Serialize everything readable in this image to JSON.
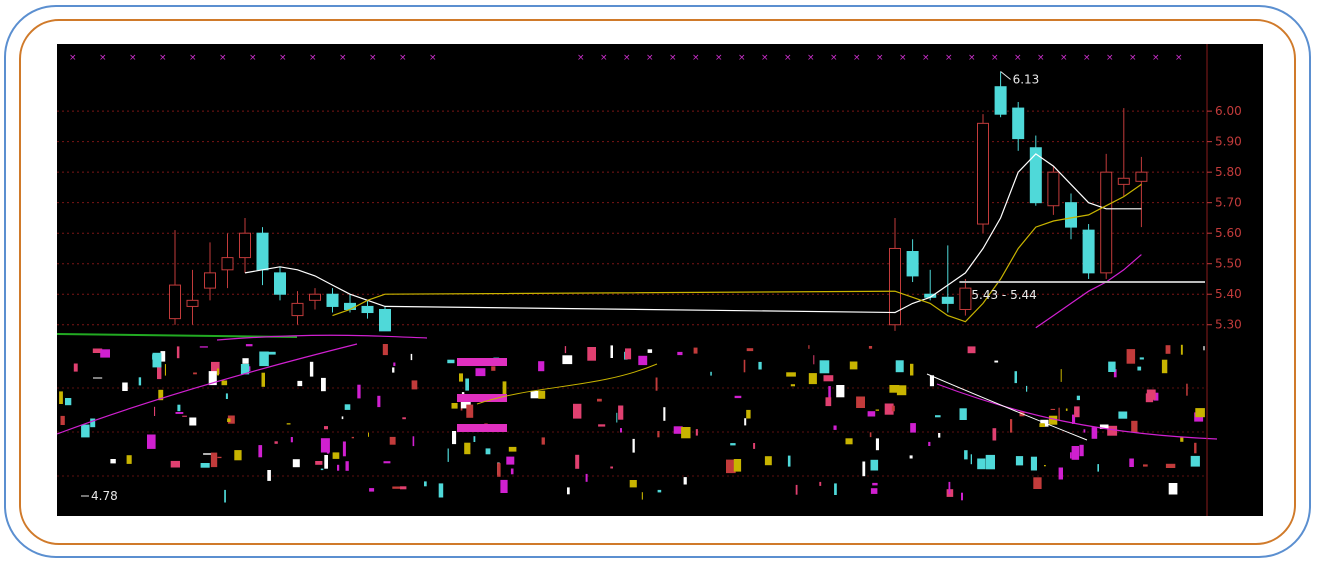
{
  "chart_data": {
    "type": "candlestick",
    "title": "",
    "xlabel": "",
    "ylabel": "",
    "ylim": [
      5.25,
      6.22
    ],
    "y_ticks": [
      {
        "value": 6.0,
        "label": "6.00"
      },
      {
        "value": 5.9,
        "label": "5.90"
      },
      {
        "value": 5.8,
        "label": "5.80"
      },
      {
        "value": 5.7,
        "label": "5.70"
      },
      {
        "value": 5.6,
        "label": "5.60"
      },
      {
        "value": 5.5,
        "label": "5.50"
      },
      {
        "value": 5.4,
        "label": "5.40"
      },
      {
        "value": 5.3,
        "label": "5.30"
      }
    ],
    "candles": [
      {
        "o": 5.32,
        "h": 5.61,
        "l": 5.3,
        "c": 5.43
      },
      {
        "o": 5.36,
        "h": 5.48,
        "l": 5.3,
        "c": 5.38
      },
      {
        "o": 5.42,
        "h": 5.57,
        "l": 5.38,
        "c": 5.47
      },
      {
        "o": 5.48,
        "h": 5.6,
        "l": 5.42,
        "c": 5.52
      },
      {
        "o": 5.52,
        "h": 5.65,
        "l": 5.47,
        "c": 5.6
      },
      {
        "o": 5.6,
        "h": 5.62,
        "l": 5.43,
        "c": 5.48
      },
      {
        "o": 5.47,
        "h": 5.49,
        "l": 5.38,
        "c": 5.4
      },
      {
        "o": 5.33,
        "h": 5.41,
        "l": 5.3,
        "c": 5.37
      },
      {
        "o": 5.38,
        "h": 5.42,
        "l": 5.35,
        "c": 5.4
      },
      {
        "o": 5.4,
        "h": 5.42,
        "l": 5.34,
        "c": 5.36
      },
      {
        "o": 5.37,
        "h": 5.4,
        "l": 5.34,
        "c": 5.35
      },
      {
        "o": 5.36,
        "h": 5.38,
        "l": 5.32,
        "c": 5.34
      },
      {
        "o": 5.35,
        "h": 5.36,
        "l": 5.28,
        "c": 5.28
      },
      {
        "o": 5.3,
        "h": 5.65,
        "l": 5.28,
        "c": 5.55
      },
      {
        "o": 5.54,
        "h": 5.58,
        "l": 5.44,
        "c": 5.46
      },
      {
        "o": 5.4,
        "h": 5.48,
        "l": 5.38,
        "c": 5.39
      },
      {
        "o": 5.39,
        "h": 5.56,
        "l": 5.34,
        "c": 5.37
      },
      {
        "o": 5.35,
        "h": 5.45,
        "l": 5.33,
        "c": 5.42
      },
      {
        "o": 5.63,
        "h": 5.99,
        "l": 5.6,
        "c": 5.96
      },
      {
        "o": 6.08,
        "h": 6.13,
        "l": 5.98,
        "c": 5.99
      },
      {
        "o": 6.01,
        "h": 6.03,
        "l": 5.87,
        "c": 5.91
      },
      {
        "o": 5.88,
        "h": 5.92,
        "l": 5.69,
        "c": 5.7
      },
      {
        "o": 5.69,
        "h": 5.82,
        "l": 5.66,
        "c": 5.8
      },
      {
        "o": 5.7,
        "h": 5.73,
        "l": 5.58,
        "c": 5.62
      },
      {
        "o": 5.61,
        "h": 5.63,
        "l": 5.45,
        "c": 5.47
      },
      {
        "o": 5.47,
        "h": 5.86,
        "l": 5.45,
        "c": 5.8
      },
      {
        "o": 5.76,
        "h": 6.01,
        "l": 5.72,
        "c": 5.78
      },
      {
        "o": 5.77,
        "h": 5.85,
        "l": 5.62,
        "c": 5.8
      }
    ],
    "series": [
      {
        "color": "#ffffff",
        "values": [
          null,
          null,
          null,
          null,
          5.47,
          5.48,
          5.49,
          5.48,
          5.46,
          5.43,
          5.4,
          5.38,
          5.36,
          5.34,
          5.37,
          5.39,
          5.43,
          5.47,
          5.55,
          5.65,
          5.8,
          5.86,
          5.82,
          5.76,
          5.7,
          5.68,
          5.68,
          5.68
        ]
      },
      {
        "color": "#c8b400",
        "values": [
          null,
          null,
          null,
          null,
          null,
          null,
          null,
          null,
          null,
          5.33,
          5.35,
          5.38,
          5.4,
          5.41,
          5.39,
          5.37,
          5.33,
          5.31,
          5.37,
          5.45,
          5.55,
          5.62,
          5.64,
          5.65,
          5.66,
          5.69,
          5.72,
          5.76
        ]
      },
      {
        "color": "#d020d0",
        "values": [
          null,
          null,
          null,
          null,
          null,
          null,
          null,
          null,
          null,
          null,
          null,
          null,
          null,
          null,
          null,
          null,
          null,
          null,
          null,
          null,
          null,
          5.29,
          5.33,
          5.37,
          5.41,
          5.44,
          5.48,
          5.53
        ]
      }
    ],
    "annotations": [
      {
        "text": "6.13"
      },
      {
        "text": "5.43 - 5.44"
      },
      {
        "text": "4.78"
      }
    ],
    "support_line": 5.44,
    "colors": {
      "up": "#c23b3b",
      "down": "#4fd9d9",
      "background": "#000000"
    }
  }
}
